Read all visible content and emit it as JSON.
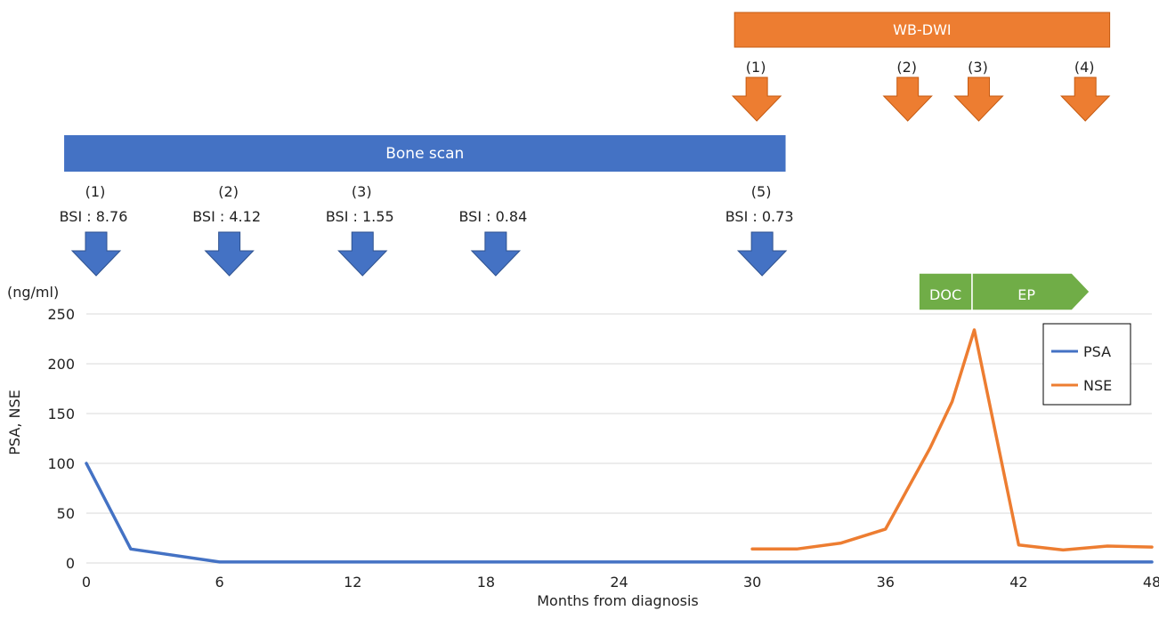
{
  "chart_data": {
    "type": "line",
    "unit_label": "(ng/ml)",
    "ylabel": "PSA, NSE",
    "xlabel": "Months from diagnosis",
    "xlim": [
      0,
      48
    ],
    "ylim": [
      0,
      250
    ],
    "x_ticks": [
      "0",
      "6",
      "12",
      "18",
      "24",
      "30",
      "36",
      "42",
      "48"
    ],
    "y_ticks": [
      "0",
      "50",
      "100",
      "150",
      "200",
      "250"
    ],
    "grid": true,
    "legend_position": "top-right",
    "series": [
      {
        "name": "PSA",
        "color": "#4472C4",
        "points": [
          [
            0,
            100
          ],
          [
            2,
            14
          ],
          [
            6,
            1
          ],
          [
            12,
            1
          ],
          [
            18,
            1
          ],
          [
            24,
            1
          ],
          [
            30,
            1
          ],
          [
            36,
            1
          ],
          [
            42,
            1
          ],
          [
            48,
            1
          ]
        ]
      },
      {
        "name": "NSE",
        "color": "#ED7D31",
        "points": [
          [
            30,
            14
          ],
          [
            32,
            14
          ],
          [
            34,
            20
          ],
          [
            36,
            34
          ],
          [
            38,
            115
          ],
          [
            39,
            162
          ],
          [
            40,
            234
          ],
          [
            42,
            18
          ],
          [
            44,
            13
          ],
          [
            46,
            17
          ],
          [
            48,
            16
          ]
        ]
      }
    ],
    "bone_scan": {
      "label": "Bone scan",
      "color": "#4472C4",
      "x_range": [
        -1,
        31.5
      ],
      "markers": [
        {
          "x": 0,
          "index": "(1)",
          "bsi": "BSI : 8.76"
        },
        {
          "x": 6,
          "index": "(2)",
          "bsi": "BSI : 4.12"
        },
        {
          "x": 12,
          "index": "(3)",
          "bsi": "BSI : 1.55"
        },
        {
          "x": 18,
          "index": "",
          "bsi": "BSI : 0.84"
        },
        {
          "x": 30,
          "index": "(5)",
          "bsi": "BSI : 0.73"
        }
      ]
    },
    "wbdwi": {
      "label": "WB-DWI",
      "color": "#ED7D31",
      "x_range": [
        29.2,
        46.1
      ],
      "markers": [
        {
          "x": 30,
          "index": "(1)"
        },
        {
          "x": 36.8,
          "index": "(2)"
        },
        {
          "x": 40,
          "index": "(3)"
        },
        {
          "x": 44.8,
          "index": "(4)"
        }
      ]
    },
    "therapy": {
      "color": "#70AD47",
      "items": [
        {
          "label": "DOC",
          "x_range": [
            37.5,
            39.9
          ]
        },
        {
          "label": "EP",
          "x_range": [
            39.9,
            45.2
          ]
        }
      ]
    }
  }
}
